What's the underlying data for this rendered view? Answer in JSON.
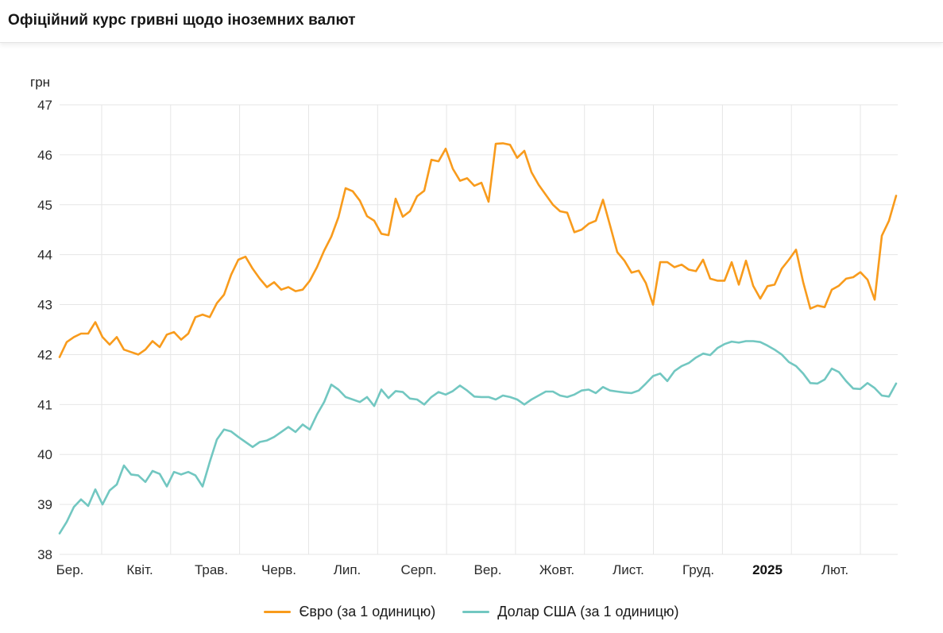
{
  "header": {
    "title": "Офіційний курс гривні щодо іноземних валют"
  },
  "chart_data": {
    "type": "line",
    "title": "Офіційний курс гривні щодо іноземних валют",
    "y_unit": "грн",
    "ylim": [
      38,
      47
    ],
    "y_ticks": [
      38,
      39,
      40,
      41,
      42,
      43,
      44,
      45,
      46,
      47
    ],
    "x_categories": [
      "Бер.",
      "Квіт.",
      "Трав.",
      "Черв.",
      "Лип.",
      "Серп.",
      "Вер.",
      "Жовт.",
      "Лист.",
      "Груд.",
      "2025",
      "Лют."
    ],
    "year_tick_label": "2025",
    "grid": true,
    "legend_position": "bottom",
    "grid_color": "#e6e6e6",
    "series": [
      {
        "name": "Євро (за 1 одиницю)",
        "color": "#F89B1C",
        "values": [
          41.95,
          42.25,
          42.35,
          42.42,
          42.42,
          42.65,
          42.35,
          42.2,
          42.35,
          42.1,
          42.05,
          42.0,
          42.1,
          42.27,
          42.15,
          42.4,
          42.45,
          42.3,
          42.42,
          42.75,
          42.8,
          42.75,
          43.03,
          43.2,
          43.6,
          43.9,
          43.96,
          43.72,
          43.52,
          43.35,
          43.45,
          43.3,
          43.35,
          43.27,
          43.3,
          43.48,
          43.75,
          44.08,
          44.36,
          44.75,
          45.33,
          45.27,
          45.08,
          44.77,
          44.68,
          44.42,
          44.39,
          45.12,
          44.76,
          44.87,
          45.17,
          45.28,
          45.9,
          45.87,
          46.12,
          45.72,
          45.48,
          45.53,
          45.38,
          45.44,
          45.06,
          46.22,
          46.23,
          46.2,
          45.94,
          46.08,
          45.65,
          45.4,
          45.2,
          45.0,
          44.87,
          44.84,
          44.45,
          44.5,
          44.62,
          44.68,
          45.1,
          44.58,
          44.05,
          43.88,
          43.64,
          43.68,
          43.43,
          43.0,
          43.85,
          43.85,
          43.75,
          43.8,
          43.7,
          43.67,
          43.9,
          43.52,
          43.48,
          43.48,
          43.85,
          43.4,
          43.88,
          43.38,
          43.12,
          43.37,
          43.4,
          43.72,
          43.9,
          44.1,
          43.45,
          42.92,
          42.98,
          42.95,
          43.3,
          43.38,
          43.52,
          43.55,
          43.65,
          43.5,
          43.1,
          44.38,
          44.68,
          45.18
        ]
      },
      {
        "name": "Долар США (за 1 одиницю)",
        "color": "#72C7C1",
        "values": [
          38.42,
          38.65,
          38.95,
          39.1,
          38.97,
          39.3,
          39.0,
          39.28,
          39.4,
          39.78,
          39.6,
          39.58,
          39.45,
          39.67,
          39.61,
          39.36,
          39.65,
          39.6,
          39.65,
          39.58,
          39.36,
          39.85,
          40.3,
          40.5,
          40.46,
          40.35,
          40.25,
          40.15,
          40.25,
          40.28,
          40.35,
          40.45,
          40.55,
          40.45,
          40.6,
          40.5,
          40.8,
          41.05,
          41.4,
          41.3,
          41.15,
          41.1,
          41.05,
          41.15,
          40.97,
          41.3,
          41.13,
          41.27,
          41.25,
          41.12,
          41.1,
          41.0,
          41.15,
          41.25,
          41.2,
          41.27,
          41.38,
          41.28,
          41.16,
          41.15,
          41.15,
          41.1,
          41.18,
          41.15,
          41.1,
          41.0,
          41.1,
          41.18,
          41.26,
          41.26,
          41.18,
          41.15,
          41.2,
          41.28,
          41.3,
          41.23,
          41.35,
          41.28,
          41.26,
          41.24,
          41.23,
          41.28,
          41.42,
          41.57,
          41.62,
          41.47,
          41.67,
          41.77,
          41.83,
          41.94,
          42.02,
          41.99,
          42.13,
          42.21,
          42.26,
          42.24,
          42.27,
          42.27,
          42.25,
          42.18,
          42.1,
          42.0,
          41.85,
          41.77,
          41.62,
          41.43,
          41.42,
          41.5,
          41.72,
          41.65,
          41.47,
          41.32,
          41.31,
          41.43,
          41.33,
          41.18,
          41.16,
          41.42
        ]
      }
    ]
  },
  "legend": {
    "items": [
      {
        "label": "Євро (за 1 одиницю)",
        "color": "#F89B1C"
      },
      {
        "label": "Долар США (за 1 одиницю)",
        "color": "#72C7C1"
      }
    ]
  }
}
